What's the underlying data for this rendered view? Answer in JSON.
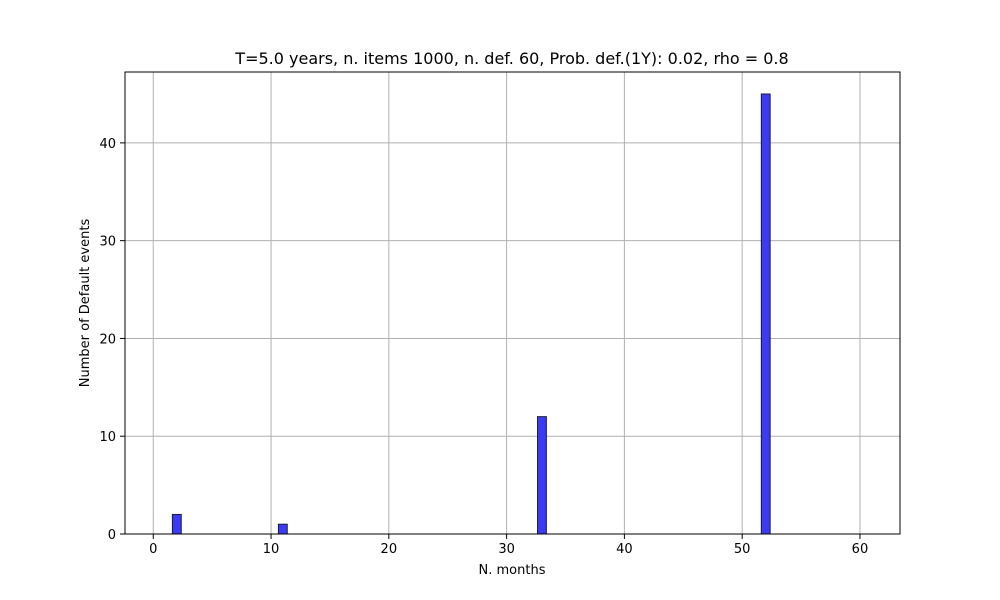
{
  "chart_data": {
    "type": "bar",
    "title": "T=5.0 years, n. items 1000, n. def. 60, Prob. def.(1Y): 0.02, rho = 0.8",
    "xlabel": "N. months",
    "ylabel": "Number of Default events",
    "xlim": [
      -2.4,
      63.4
    ],
    "ylim": [
      0,
      47.25
    ],
    "xticks": [
      0,
      10,
      20,
      30,
      40,
      50,
      60
    ],
    "yticks": [
      0,
      10,
      20,
      30,
      40
    ],
    "grid": true,
    "bar_width": 0.75,
    "x": [
      2,
      11,
      33,
      52
    ],
    "values": [
      2,
      1,
      12,
      45
    ],
    "bar_color": "#3b3bf5",
    "edge_color": "#1a1a3a",
    "grid_color": "#b0b0b0"
  }
}
